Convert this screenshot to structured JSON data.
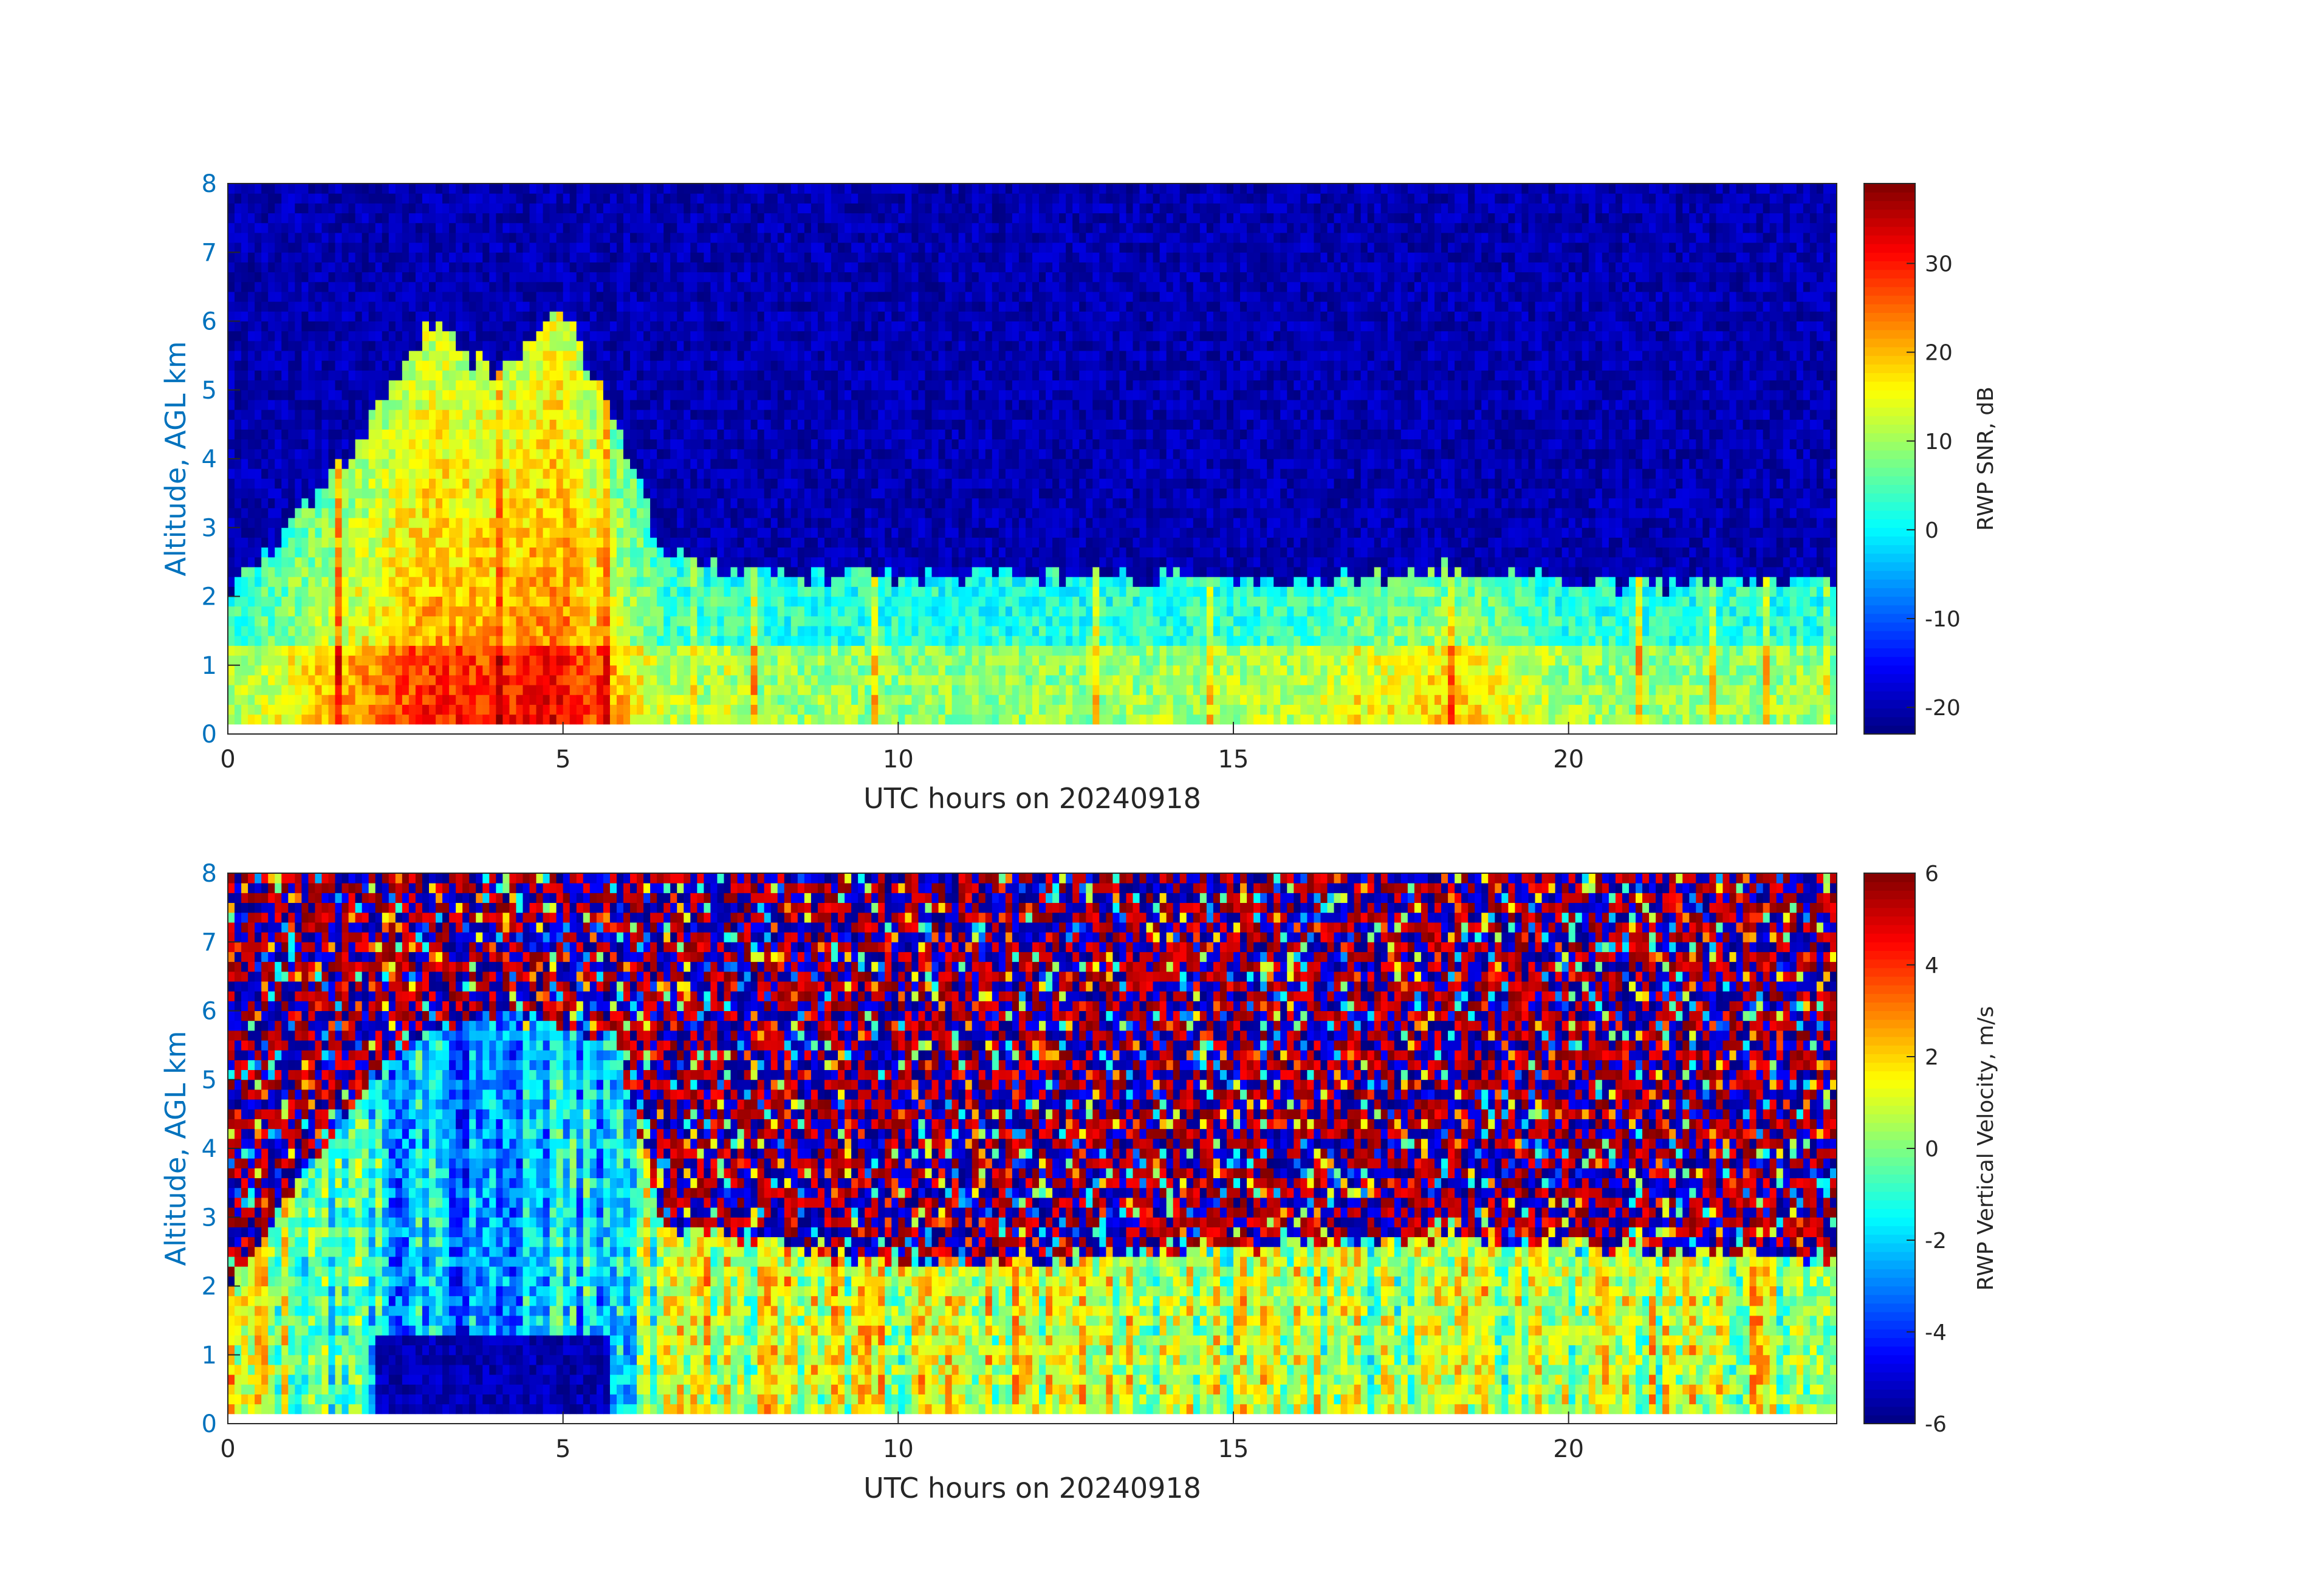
{
  "colors": {
    "y_axis": "#0072bd",
    "x_axis": "#262626",
    "colormap": "jet"
  },
  "chart_data": [
    {
      "type": "heatmap",
      "title": "",
      "xlabel": "UTC hours on 20240918",
      "ylabel": "Altitude, AGL km",
      "xlim": [
        0,
        24
      ],
      "ylim": [
        0,
        8
      ],
      "x_ticks": [
        "0",
        "5",
        "10",
        "15",
        "20"
      ],
      "y_ticks": [
        "0",
        "1",
        "2",
        "3",
        "4",
        "5",
        "6",
        "7",
        "8"
      ],
      "colorbar": {
        "label": "RWP SNR, dB",
        "range": [
          -23,
          39
        ],
        "ticks": [
          "-20",
          "-10",
          "0",
          "10",
          "20",
          "30"
        ]
      },
      "data_bottom_km": 0.25,
      "noise_floor_dB": -20,
      "boundary_layer": [
        {
          "t": 0,
          "top_km": 2.0,
          "snr_dB": 4
        },
        {
          "t": 2,
          "top_km": 4.3,
          "snr_dB": 18
        },
        {
          "t": 3,
          "top_km": 6.0,
          "snr_dB": 24
        },
        {
          "t": 4,
          "top_km": 5.2,
          "snr_dB": 24
        },
        {
          "t": 5,
          "top_km": 6.2,
          "snr_dB": 27
        },
        {
          "t": 5.8,
          "top_km": 4.5,
          "snr_dB": 15
        },
        {
          "t": 6.5,
          "top_km": 2.6,
          "snr_dB": 6
        },
        {
          "t": 8,
          "top_km": 2.3,
          "snr_dB": 4
        },
        {
          "t": 12,
          "top_km": 2.3,
          "snr_dB": 3
        },
        {
          "t": 16,
          "top_km": 2.2,
          "snr_dB": 6
        },
        {
          "t": 18.3,
          "top_km": 2.4,
          "snr_dB": 14
        },
        {
          "t": 20,
          "top_km": 2.2,
          "snr_dB": 4
        },
        {
          "t": 24,
          "top_km": 2.2,
          "snr_dB": 4
        }
      ]
    },
    {
      "type": "heatmap",
      "title": "",
      "xlabel": "UTC hours on 20240918",
      "ylabel": "Altitude, AGL km",
      "xlim": [
        0,
        24
      ],
      "ylim": [
        0,
        8
      ],
      "x_ticks": [
        "0",
        "5",
        "10",
        "15",
        "20"
      ],
      "y_ticks": [
        "0",
        "1",
        "2",
        "3",
        "4",
        "5",
        "6",
        "7",
        "8"
      ],
      "colorbar": {
        "label": "RWP Vertical Velocity, m/s",
        "range": [
          -6,
          6
        ],
        "ticks": [
          "-6",
          "-4",
          "-2",
          "0",
          "2",
          "4",
          "6"
        ]
      },
      "data_bottom_km": 0.25,
      "noise_range_m_s": [
        -6,
        6
      ],
      "boundary_layer": [
        {
          "t": 0,
          "top_km": 2.0,
          "w_m_s": 1.5
        },
        {
          "t": 2.5,
          "top_km": 5.5,
          "w_m_s": -2
        },
        {
          "t": 4,
          "top_km": 6.0,
          "w_m_s": -2.5
        },
        {
          "t": 5.8,
          "top_km": 5.5,
          "w_m_s": -2
        },
        {
          "t": 6.5,
          "top_km": 2.9,
          "w_m_s": 1
        },
        {
          "t": 10,
          "top_km": 2.3,
          "w_m_s": 1
        },
        {
          "t": 18.3,
          "top_km": 2.7,
          "w_m_s": 0.5
        },
        {
          "t": 24,
          "top_km": 2.4,
          "w_m_s": 1
        }
      ],
      "downdraft_core": {
        "t_start": 2.2,
        "t_end": 5.7,
        "top_km": 1.3,
        "w_m_s": -6
      }
    }
  ]
}
